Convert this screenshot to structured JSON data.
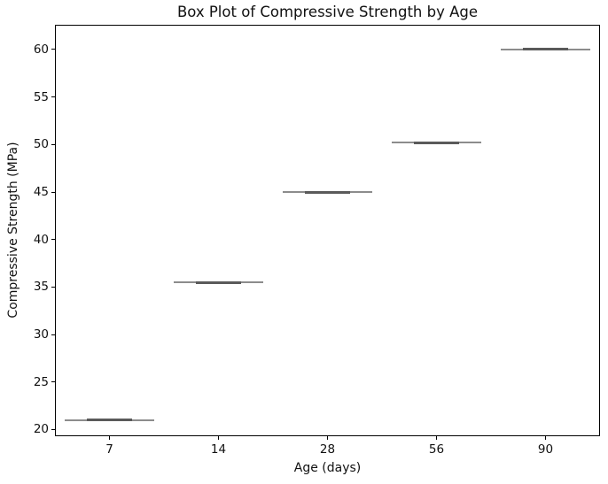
{
  "chart_data": {
    "type": "box",
    "title": "Box Plot of Compressive Strength by Age",
    "xlabel": "Age (days)",
    "ylabel": "Compressive Strength (MPa)",
    "categories": [
      "7",
      "14",
      "28",
      "56",
      "90"
    ],
    "boxes": [
      {
        "category": "7",
        "median": 21.0,
        "q1": 21.0,
        "q3": 21.0,
        "whisker_low": 21.0,
        "whisker_high": 21.0
      },
      {
        "category": "14",
        "median": 35.5,
        "q1": 35.5,
        "q3": 35.5,
        "whisker_low": 35.5,
        "whisker_high": 35.5
      },
      {
        "category": "28",
        "median": 45.0,
        "q1": 45.0,
        "q3": 45.0,
        "whisker_low": 45.0,
        "whisker_high": 45.0
      },
      {
        "category": "56",
        "median": 50.2,
        "q1": 50.2,
        "q3": 50.2,
        "whisker_low": 50.2,
        "whisker_high": 50.2
      },
      {
        "category": "90",
        "median": 60.0,
        "q1": 60.0,
        "q3": 60.0,
        "whisker_low": 60.0,
        "whisker_high": 60.0
      }
    ],
    "yticks": [
      20,
      25,
      30,
      35,
      40,
      45,
      50,
      55,
      60
    ],
    "ylim": [
      19.3,
      62.6
    ],
    "grid": false,
    "legend": "none",
    "colors": {
      "box_line": "#5a5a5a",
      "whisker_line": "#8c8c8c",
      "axis": "#000000",
      "background": "#ffffff"
    }
  }
}
